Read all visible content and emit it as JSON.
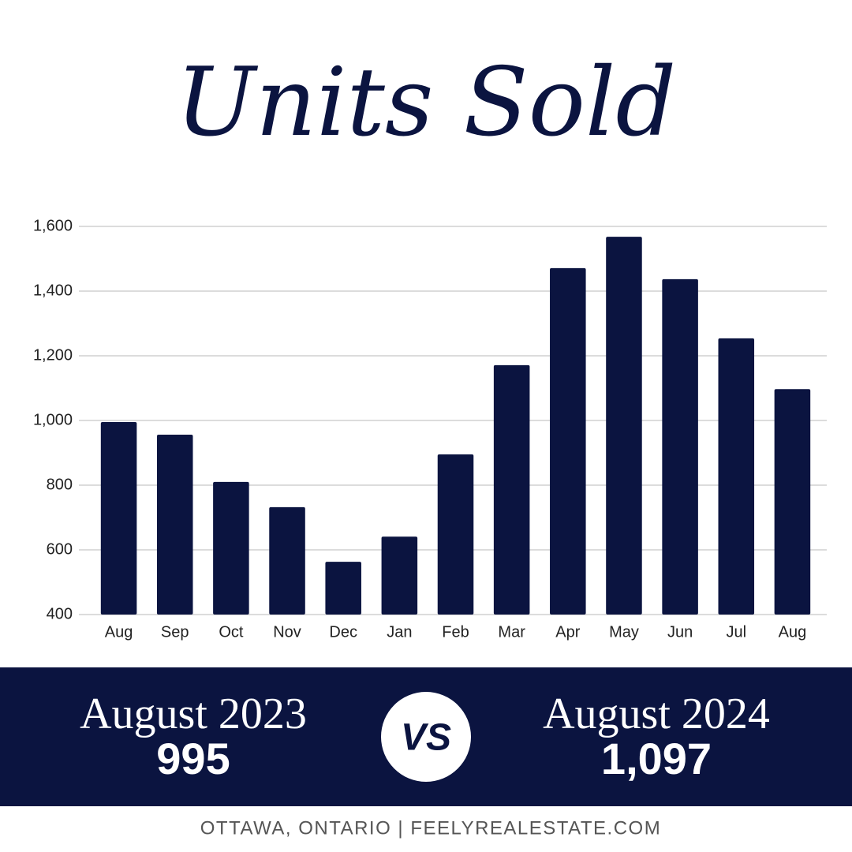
{
  "chart_data": {
    "type": "bar",
    "title": "Units Sold",
    "categories": [
      "Aug",
      "Sep",
      "Oct",
      "Nov",
      "Dec",
      "Jan",
      "Feb",
      "Mar",
      "Apr",
      "May",
      "Jun",
      "Jul",
      "Aug"
    ],
    "values": [
      995,
      956,
      810,
      732,
      563,
      641,
      895,
      1171,
      1471,
      1568,
      1437,
      1254,
      1097
    ],
    "color": "#0b1440",
    "ylim": [
      400,
      1600
    ],
    "yticks": [
      400,
      600,
      800,
      {
        "value": 1000,
        "label": "1,000"
      },
      {
        "value": 1200,
        "label": "1,200"
      },
      {
        "value": 1400,
        "label": "1,400"
      },
      {
        "value": 1600,
        "label": "1,600"
      }
    ],
    "grid": true
  },
  "banner": {
    "left": {
      "period": "August 2023",
      "value": "995"
    },
    "vs": "VS",
    "right": {
      "period": "August 2024",
      "value": "1,097"
    }
  },
  "footer": "OTTAWA, ONTARIO | FEELYREALESTATE.COM"
}
